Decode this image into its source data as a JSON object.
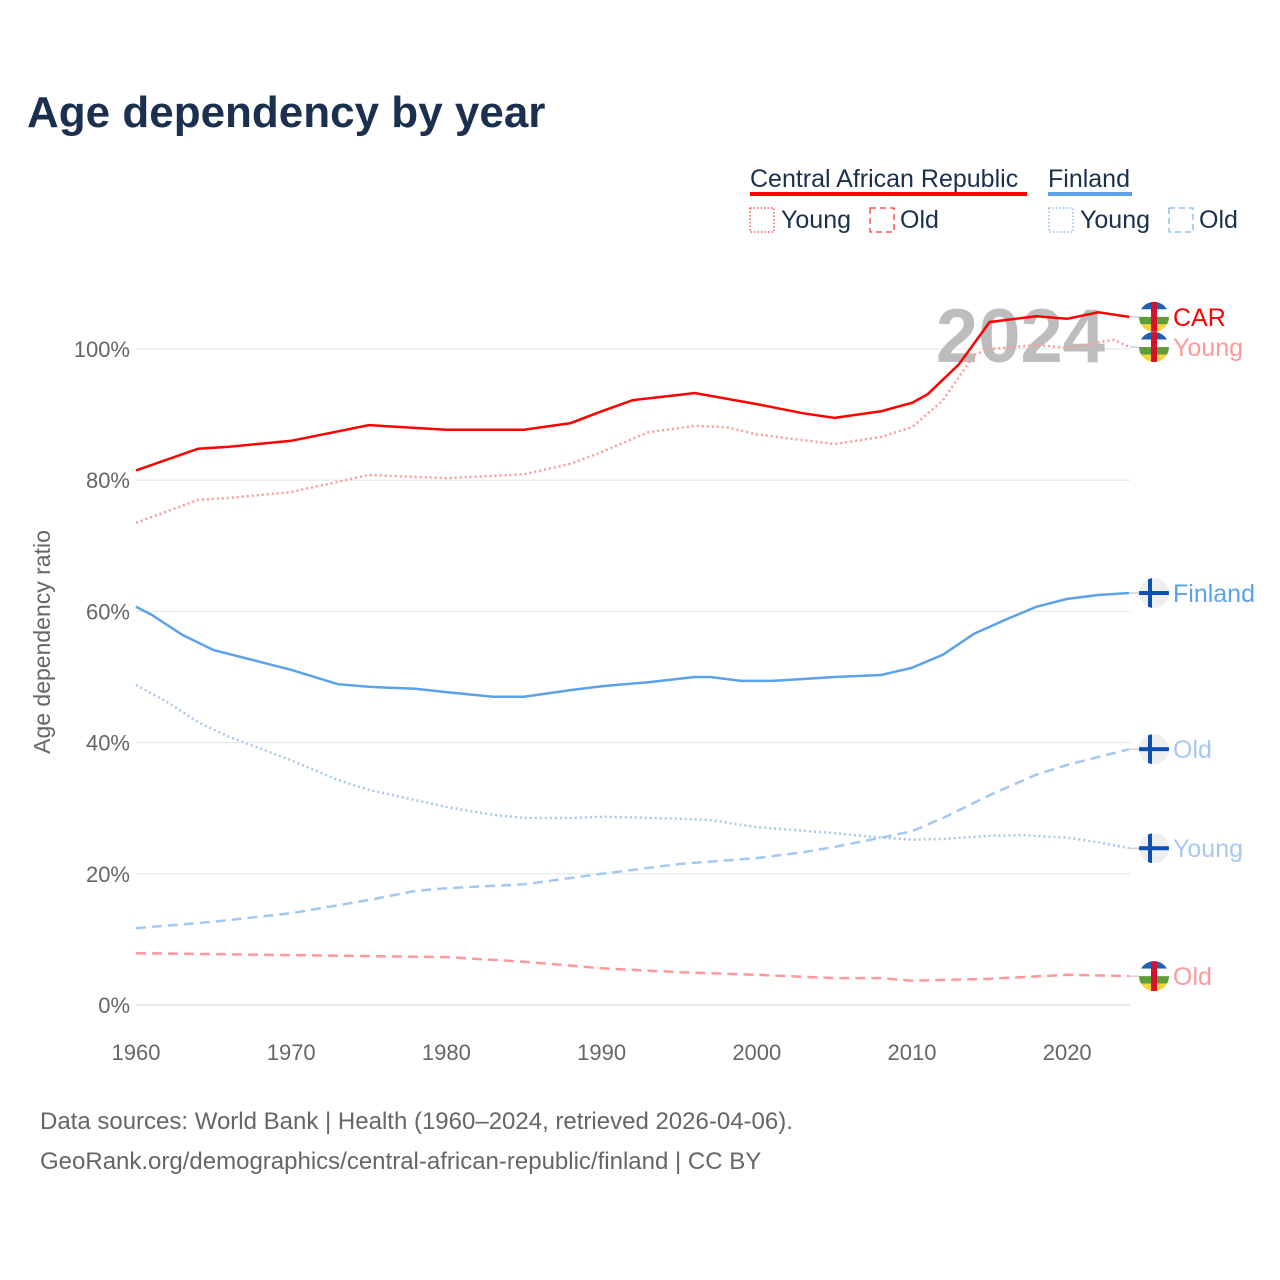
{
  "title": "Age dependency by year",
  "legend": {
    "car": "Central African Republic",
    "fin": "Finland",
    "young": "Young",
    "old": "Old"
  },
  "watermark_year": "2024",
  "sources": [
    "Data sources: World Bank | Health (1960–2024, retrieved 2026-04-06).",
    "GeoRank.org/demographics/central-african-republic/finland | CC BY"
  ],
  "chart_data": {
    "type": "line",
    "title": "Age dependency by year",
    "xlabel": "",
    "ylabel": "Age dependency ratio",
    "xlim": [
      1960,
      2024
    ],
    "ylim": [
      0,
      110
    ],
    "xticks": [
      1960,
      1970,
      1980,
      1990,
      2000,
      2010,
      2020
    ],
    "yticks": [
      0,
      20,
      40,
      60,
      80,
      100
    ],
    "ytick_labels": [
      "0%",
      "20%",
      "40%",
      "60%",
      "80%",
      "100%"
    ],
    "series": [
      {
        "name": "Central African Republic",
        "end_label": "CAR",
        "country": "car",
        "style": "solid",
        "color": "#ff0000",
        "x": [
          1960,
          1964,
          1966,
          1970,
          1975,
          1980,
          1985,
          1988,
          1990,
          1992,
          1995,
          1996,
          2000,
          2003,
          2005,
          2008,
          2010,
          2011,
          2013,
          2015,
          2018,
          2020,
          2022,
          2024
        ],
        "y": [
          81.5,
          84.8,
          85.1,
          86,
          88.4,
          87.7,
          87.7,
          88.7,
          90.5,
          92.2,
          93,
          93.3,
          91.6,
          90.2,
          89.5,
          90.5,
          91.8,
          93.1,
          97.6,
          104.1,
          105,
          104.6,
          105.6,
          104.9
        ]
      },
      {
        "name": "Central African Republic Young",
        "end_label": "Young",
        "country": "car",
        "style": "dotted",
        "color": "#ff9a9a",
        "x": [
          1960,
          1964,
          1966,
          1970,
          1975,
          1980,
          1985,
          1988,
          1990,
          1993,
          1996,
          1998,
          2000,
          2003,
          2005,
          2008,
          2010,
          2012,
          2014,
          2015,
          2018,
          2020,
          2023,
          2024
        ],
        "y": [
          73.5,
          77,
          77.3,
          78.2,
          80.8,
          80.3,
          80.9,
          82.5,
          84.3,
          87.3,
          88.3,
          88.1,
          87,
          86.1,
          85.5,
          86.6,
          88.1,
          92.2,
          99.1,
          100,
          100.6,
          100.2,
          101.4,
          100.3
        ]
      },
      {
        "name": "Central African Republic Old",
        "end_label": "Old",
        "country": "car",
        "style": "dashed",
        "color": "#ff9a9a",
        "x": [
          1960,
          1970,
          1980,
          1985,
          1990,
          1995,
          2000,
          2005,
          2008,
          2010,
          2015,
          2020,
          2024
        ],
        "y": [
          7.9,
          7.6,
          7.3,
          6.6,
          5.6,
          5,
          4.6,
          4.1,
          4.1,
          3.7,
          4,
          4.6,
          4.4
        ]
      },
      {
        "name": "Finland",
        "end_label": "Finland",
        "country": "fin",
        "style": "solid",
        "color": "#5aa2ea",
        "x": [
          1960,
          1961,
          1963,
          1965,
          1968,
          1970,
          1973,
          1975,
          1978,
          1980,
          1983,
          1985,
          1988,
          1990,
          1993,
          1996,
          1997,
          1999,
          2001,
          2003,
          2005,
          2008,
          2010,
          2012,
          2014,
          2016,
          2018,
          2020,
          2022,
          2024
        ],
        "y": [
          60.7,
          59.5,
          56.4,
          54.1,
          52.3,
          51.1,
          48.9,
          48.5,
          48.2,
          47.7,
          47,
          47,
          48,
          48.6,
          49.2,
          50,
          50,
          49.4,
          49.4,
          49.7,
          50,
          50.3,
          51.4,
          53.4,
          56.6,
          58.7,
          60.7,
          61.9,
          62.5,
          62.8
        ]
      },
      {
        "name": "Finland Old",
        "end_label": "Old",
        "country": "fin",
        "style": "dashed",
        "color": "#a6c8f0",
        "x": [
          1960,
          1965,
          1970,
          1975,
          1978,
          1980,
          1985,
          1990,
          1995,
          2000,
          2003,
          2005,
          2008,
          2010,
          2012,
          2015,
          2018,
          2020,
          2022,
          2024
        ],
        "y": [
          11.7,
          12.7,
          14,
          16,
          17.4,
          17.8,
          18.4,
          20,
          21.5,
          22.4,
          23.3,
          24.1,
          25.5,
          26.5,
          28.5,
          32,
          35.1,
          36.6,
          37.8,
          39
        ]
      },
      {
        "name": "Finland Young",
        "end_label": "Young",
        "country": "fin",
        "style": "dotted",
        "color": "#a6c8f0",
        "x": [
          1960,
          1962,
          1964,
          1966,
          1970,
          1973,
          1975,
          1980,
          1983,
          1985,
          1988,
          1990,
          1995,
          1997,
          2000,
          2005,
          2008,
          2010,
          2012,
          2015,
          2017,
          2020,
          2022,
          2024
        ],
        "y": [
          48.8,
          46.2,
          43.1,
          40.9,
          37.3,
          34.3,
          32.8,
          30.2,
          29,
          28.5,
          28.5,
          28.7,
          28.4,
          28.2,
          27.1,
          26.2,
          25.5,
          25.2,
          25.3,
          25.8,
          25.9,
          25.5,
          24.8,
          23.9
        ]
      }
    ]
  }
}
